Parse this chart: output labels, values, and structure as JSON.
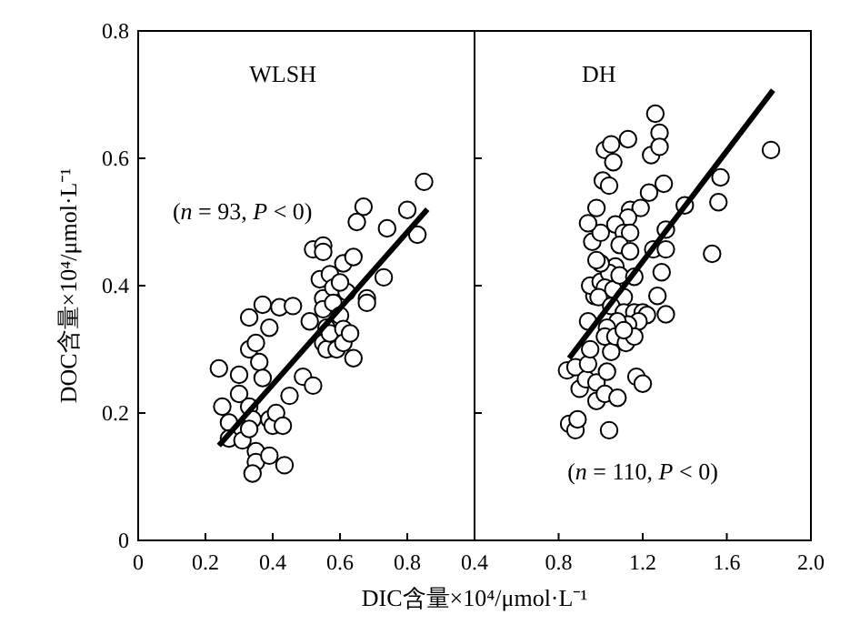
{
  "chart_data": [
    {
      "type": "scatter",
      "title": "WLSH",
      "xlabel": "DIC含量×10⁴/μmol·L⁻¹",
      "ylabel": "DOC含量×10⁴/μmol·L⁻¹",
      "xlim": [
        0,
        1.0
      ],
      "ylim": [
        0,
        0.8
      ],
      "xticks": [
        0,
        0.2,
        0.4,
        0.6,
        0.8
      ],
      "yticks": [
        0,
        0.2,
        0.4,
        0.6,
        0.8
      ],
      "marker": "circle",
      "grid": false,
      "annotations": [
        "(*n* = 93, *P* < 0)"
      ],
      "series": [
        {
          "color": "#000000",
          "x": [
            0.24,
            0.25,
            0.27,
            0.3,
            0.3,
            0.27,
            0.31,
            0.33,
            0.33,
            0.35,
            0.36,
            0.37,
            0.37,
            0.33,
            0.34,
            0.33,
            0.35,
            0.35,
            0.34,
            0.39,
            0.39,
            0.4,
            0.41,
            0.43,
            0.435,
            0.45,
            0.39,
            0.42,
            0.46,
            0.49,
            0.52,
            0.51,
            0.52,
            0.54,
            0.55,
            0.55,
            0.55,
            0.56,
            0.55,
            0.56,
            0.57,
            0.57,
            0.58,
            0.58,
            0.59,
            0.6,
            0.61,
            0.61,
            0.62,
            0.61,
            0.64,
            0.63,
            0.64,
            0.65,
            0.67,
            0.68,
            0.68,
            0.73,
            0.74,
            0.8,
            0.83,
            0.85,
            0.55,
            0.6
          ],
          "values": [
            0.27,
            0.21,
            0.185,
            0.26,
            0.23,
            0.16,
            0.157,
            0.35,
            0.3,
            0.31,
            0.28,
            0.255,
            0.37,
            0.21,
            0.19,
            0.175,
            0.14,
            0.123,
            0.105,
            0.133,
            0.19,
            0.18,
            0.2,
            0.18,
            0.118,
            0.227,
            0.334,
            0.366,
            0.368,
            0.257,
            0.243,
            0.344,
            0.457,
            0.41,
            0.463,
            0.38,
            0.363,
            0.334,
            0.31,
            0.3,
            0.325,
            0.418,
            0.397,
            0.373,
            0.3,
            0.353,
            0.332,
            0.31,
            0.39,
            0.435,
            0.445,
            0.325,
            0.286,
            0.5,
            0.524,
            0.38,
            0.373,
            0.413,
            0.49,
            0.519,
            0.48,
            0.563,
            0.453,
            0.405
          ]
        },
        {
          "type": "line",
          "marker": "none",
          "color": "#000000",
          "x": [
            0.24,
            0.86
          ],
          "values": [
            0.149,
            0.52
          ]
        }
      ]
    },
    {
      "type": "scatter",
      "title": "DH",
      "xlim": [
        0.4,
        2.0
      ],
      "ylim": [
        0,
        0.8
      ],
      "xticks": [
        0.4,
        0.8,
        1.2,
        1.6,
        {
          "value": 2,
          "label": "2.0"
        }
      ],
      "yticks": [
        0,
        0.2,
        0.4,
        0.6,
        0.8
      ],
      "tick_labels": "x",
      "marker": "circle",
      "grid": false,
      "annotations": [
        "(*n* = 110, *P* < 0)"
      ],
      "series": [
        {
          "color": "#000000",
          "x": [
            0.85,
            0.88,
            0.89,
            0.84,
            0.88,
            0.9,
            0.93,
            0.94,
            0.95,
            0.98,
            0.98,
            1.02,
            1.03,
            1.04,
            1.08,
            1.05,
            0.94,
            0.97,
            0.95,
            1.0,
            0.96,
            1.0,
            0.98,
            1.01,
            1.04,
            1.02,
            1.05,
            1.06,
            1.13,
            1.24,
            1.26,
            1.28,
            1.28,
            1.3,
            1.23,
            1.14,
            1.19,
            1.13,
            1.07,
            1.11,
            1.14,
            1.09,
            1.14,
            1.07,
            1.04,
            1.0,
            1.02,
            0.99,
            1.06,
            1.09,
            1.16,
            1.11,
            1.05,
            1.11,
            1.16,
            1.2,
            1.25,
            1.31,
            1.31,
            1.29,
            1.27,
            1.31,
            1.22,
            1.18,
            1.13,
            1.08,
            1.03,
            1.02,
            1.07,
            1.12,
            1.16,
            1.11,
            1.17,
            1.2,
            1.4,
            1.56,
            1.57,
            1.53,
            1.81,
            0.94,
            0.98
          ],
          "values": [
            0.183,
            0.173,
            0.19,
            0.267,
            0.272,
            0.238,
            0.253,
            0.277,
            0.3,
            0.219,
            0.248,
            0.23,
            0.265,
            0.173,
            0.224,
            0.296,
            0.344,
            0.384,
            0.4,
            0.406,
            0.469,
            0.483,
            0.522,
            0.565,
            0.557,
            0.613,
            0.622,
            0.594,
            0.63,
            0.605,
            0.67,
            0.64,
            0.618,
            0.56,
            0.546,
            0.519,
            0.522,
            0.507,
            0.496,
            0.483,
            0.483,
            0.464,
            0.454,
            0.43,
            0.42,
            0.435,
            0.397,
            0.382,
            0.394,
            0.416,
            0.414,
            0.382,
            0.368,
            0.358,
            0.358,
            0.358,
            0.457,
            0.488,
            0.457,
            0.421,
            0.384,
            0.355,
            0.354,
            0.344,
            0.339,
            0.344,
            0.334,
            0.32,
            0.32,
            0.31,
            0.32,
            0.33,
            0.257,
            0.246,
            0.526,
            0.531,
            0.57,
            0.45,
            0.613,
            0.498,
            0.44
          ]
        },
        {
          "type": "line",
          "marker": "none",
          "color": "#000000",
          "x": [
            0.85,
            1.82
          ],
          "values": [
            0.286,
            0.707
          ]
        }
      ]
    }
  ]
}
